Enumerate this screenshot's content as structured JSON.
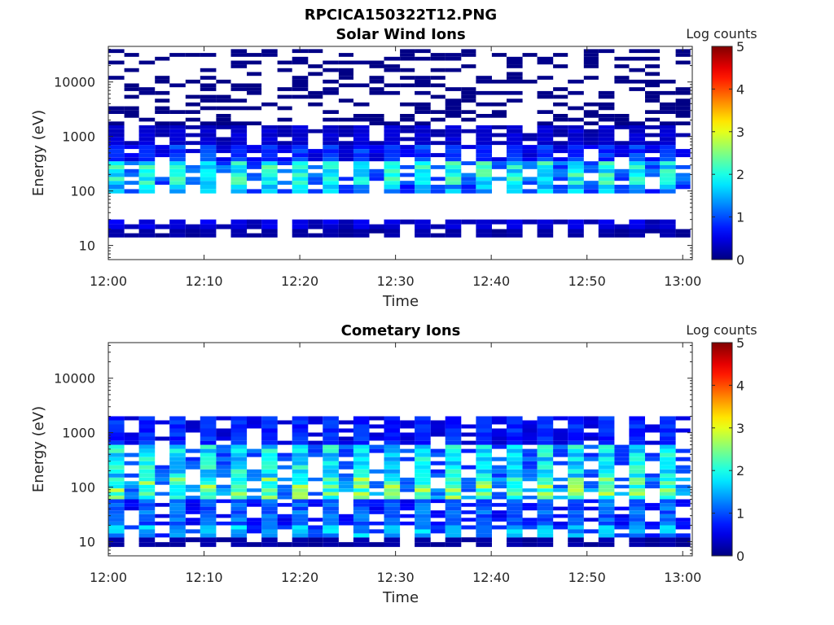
{
  "figure_title": "RPCICA150322T12.PNG",
  "chart_data": [
    {
      "type": "heatmap",
      "title": "Solar Wind Ions",
      "xlabel": "Time",
      "ylabel": "Energy (eV)",
      "x_range": [
        "12:00",
        "13:01"
      ],
      "x_ticks": [
        "12:00",
        "12:10",
        "12:20",
        "12:30",
        "12:40",
        "12:50",
        "13:00"
      ],
      "y_scale": "log",
      "y_range": [
        5.5,
        45000
      ],
      "y_ticks": [
        "10",
        "100",
        "1000",
        "10000"
      ],
      "colorbar": {
        "label": "Log counts",
        "range": [
          0,
          5
        ],
        "ticks": [
          "0",
          "1",
          "2",
          "3",
          "4",
          "5"
        ],
        "colormap": "jet"
      },
      "scan_period_min": 3.2,
      "columns": 19,
      "bands": [
        {
          "energy_eV": [
            20,
            30
          ],
          "log_counts": 0.5
        },
        {
          "energy_eV": [
            14,
            20
          ],
          "log_counts": 0.2
        },
        {
          "energy_eV": [
            90,
            130
          ],
          "log_counts": 1.5
        },
        {
          "energy_eV": [
            130,
            350
          ],
          "log_counts": 1.9
        },
        {
          "energy_eV": [
            350,
            700
          ],
          "log_counts": 0.9
        },
        {
          "energy_eV": [
            700,
            1600
          ],
          "log_counts": 0.4
        },
        {
          "energy_eV": [
            1600,
            40000
          ],
          "log_counts": 0.05,
          "sparse": true
        }
      ]
    },
    {
      "type": "heatmap",
      "title": "Cometary Ions",
      "xlabel": "Time",
      "ylabel": "Energy (eV)",
      "x_range": [
        "12:00",
        "13:01"
      ],
      "x_ticks": [
        "12:00",
        "12:10",
        "12:20",
        "12:30",
        "12:40",
        "12:50",
        "13:00"
      ],
      "y_scale": "log",
      "y_range": [
        5.5,
        45000
      ],
      "y_ticks": [
        "10",
        "100",
        "1000",
        "10000"
      ],
      "colorbar": {
        "label": "Log counts",
        "range": [
          0,
          5
        ],
        "ticks": [
          "0",
          "1",
          "2",
          "3",
          "4",
          "5"
        ],
        "colormap": "jet"
      },
      "scan_period_min": 3.2,
      "columns": 19,
      "bands": [
        {
          "energy_eV": [
            8,
            12
          ],
          "log_counts": 0.2
        },
        {
          "energy_eV": [
            12,
            20
          ],
          "log_counts": 1.5
        },
        {
          "energy_eV": [
            20,
            60
          ],
          "log_counts": 1.1
        },
        {
          "energy_eV": [
            60,
            150
          ],
          "log_counts": 2.3
        },
        {
          "energy_eV": [
            150,
            600
          ],
          "log_counts": 1.8
        },
        {
          "energy_eV": [
            600,
            2000
          ],
          "log_counts": 0.8
        }
      ]
    }
  ]
}
